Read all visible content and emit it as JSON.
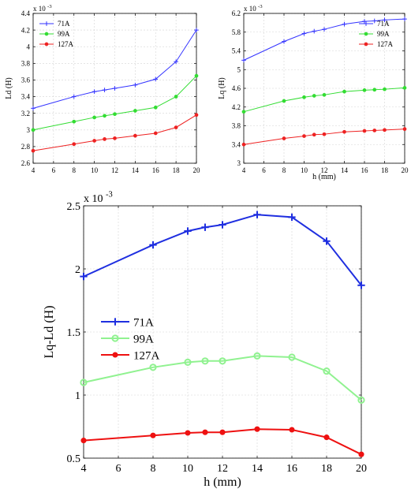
{
  "chart_data": [
    {
      "type": "line",
      "xlabel": "",
      "ylabel": "Ld (H)",
      "exponent": "x 10",
      "exponent_power": "-3",
      "x": [
        4,
        8,
        10,
        11,
        12,
        14,
        16,
        18,
        20
      ],
      "xlim": [
        4,
        20
      ],
      "ylim": [
        2.6,
        4.4
      ],
      "xticks": [
        4,
        6,
        8,
        10,
        12,
        14,
        16,
        18,
        20
      ],
      "yticks": [
        "2.6",
        "2.8",
        "3",
        "3.2",
        "3.4",
        "3.6",
        "3.8",
        "4",
        "4.2",
        "4.4"
      ],
      "grid": true,
      "legend": "top-left",
      "series": [
        {
          "name": "71A",
          "color": "#3333ff",
          "marker": "plus",
          "values": [
            3.26,
            3.4,
            3.46,
            3.48,
            3.5,
            3.54,
            3.61,
            3.82,
            4.2
          ]
        },
        {
          "name": "99A",
          "color": "#33dd33",
          "marker": "dot",
          "values": [
            3.0,
            3.1,
            3.15,
            3.17,
            3.19,
            3.23,
            3.27,
            3.4,
            3.65
          ]
        },
        {
          "name": "127A",
          "color": "#ee2222",
          "marker": "dot",
          "values": [
            2.75,
            2.83,
            2.87,
            2.89,
            2.9,
            2.93,
            2.96,
            3.03,
            3.18
          ]
        }
      ]
    },
    {
      "type": "line",
      "xlabel": "h (mm)",
      "ylabel": "Lq (H)",
      "exponent": "x 10",
      "exponent_power": "-3",
      "x": [
        4,
        8,
        10,
        11,
        12,
        14,
        16,
        17,
        18,
        20
      ],
      "xlim": [
        4,
        20
      ],
      "ylim": [
        3,
        6.2
      ],
      "xticks": [
        4,
        6,
        8,
        10,
        12,
        14,
        16,
        18,
        20
      ],
      "yticks": [
        "3",
        "3.4",
        "3.8",
        "4.2",
        "4.6",
        "5",
        "5.4",
        "5.8",
        "6.2"
      ],
      "grid": true,
      "legend": "top-right",
      "series": [
        {
          "name": "71A",
          "color": "#3333ff",
          "marker": "plus",
          "values": [
            5.2,
            5.6,
            5.77,
            5.82,
            5.86,
            5.97,
            6.03,
            6.04,
            6.06,
            6.08
          ]
        },
        {
          "name": "99A",
          "color": "#33dd33",
          "marker": "dot",
          "values": [
            4.1,
            4.33,
            4.41,
            4.44,
            4.46,
            4.53,
            4.56,
            4.57,
            4.58,
            4.61
          ]
        },
        {
          "name": "127A",
          "color": "#ee2222",
          "marker": "dot",
          "values": [
            3.4,
            3.53,
            3.58,
            3.61,
            3.62,
            3.67,
            3.69,
            3.7,
            3.71,
            3.73
          ]
        }
      ]
    },
    {
      "type": "line",
      "xlabel": "h (mm)",
      "ylabel": "Lq-Ld (H)",
      "exponent": "x 10",
      "exponent_power": "-3",
      "x": [
        4,
        8,
        10,
        11,
        12,
        14,
        16,
        18,
        20
      ],
      "xlim": [
        4,
        20
      ],
      "ylim": [
        0.5,
        2.5
      ],
      "xticks": [
        4,
        6,
        8,
        10,
        12,
        14,
        16,
        18,
        20
      ],
      "yticks": [
        "0.5",
        "1",
        "1.5",
        "2",
        "2.5"
      ],
      "grid": true,
      "legend": "center-left",
      "series": [
        {
          "name": "71A",
          "color": "#1f2fe0",
          "marker": "plus",
          "values": [
            1.94,
            2.19,
            2.3,
            2.33,
            2.35,
            2.43,
            2.41,
            2.22,
            1.87
          ]
        },
        {
          "name": "99A",
          "color": "#90f290",
          "marker": "circle",
          "values": [
            1.1,
            1.22,
            1.26,
            1.27,
            1.27,
            1.31,
            1.3,
            1.19,
            0.96
          ]
        },
        {
          "name": "127A",
          "color": "#ee1111",
          "marker": "dot",
          "values": [
            0.64,
            0.68,
            0.7,
            0.705,
            0.705,
            0.73,
            0.725,
            0.665,
            0.53
          ]
        }
      ]
    }
  ]
}
